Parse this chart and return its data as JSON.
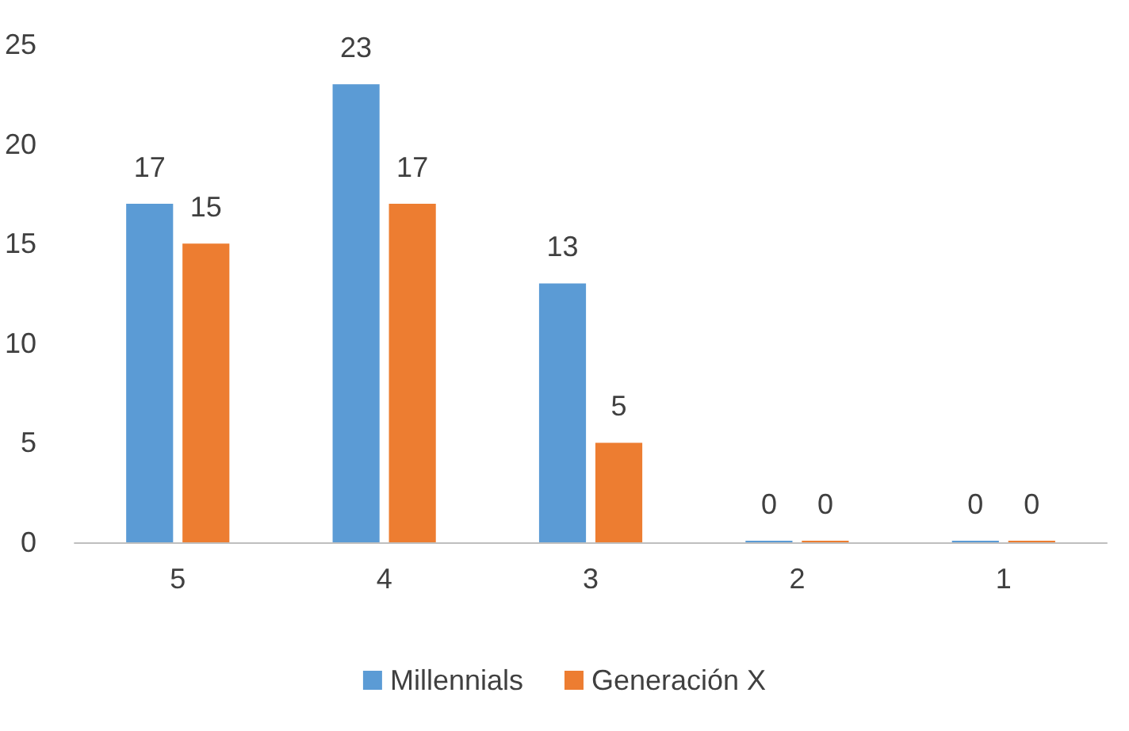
{
  "chart_data": {
    "type": "bar",
    "categories": [
      "5",
      "4",
      "3",
      "2",
      "1"
    ],
    "series": [
      {
        "name": "Millennials",
        "color": "#5b9bd5",
        "values": [
          17,
          23,
          13,
          0,
          0
        ]
      },
      {
        "name": "Generación X",
        "color": "#ed7d31",
        "values": [
          15,
          17,
          5,
          0,
          0
        ]
      }
    ],
    "ylim": [
      0,
      25
    ],
    "yticks": [
      0,
      5,
      10,
      15,
      20,
      25
    ],
    "grid": false,
    "legend": "bottom",
    "data_labels": true
  }
}
